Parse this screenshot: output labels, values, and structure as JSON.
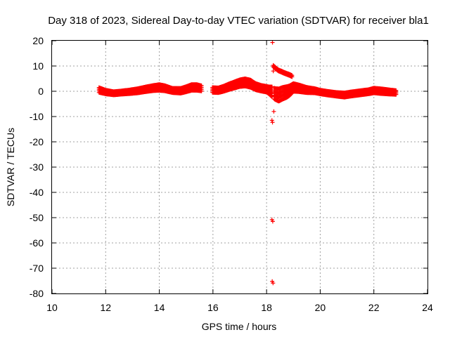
{
  "chart_data": {
    "type": "scatter",
    "title": "Day 318 of 2023, Sidereal Day-to-day VTEC variation (SDTVAR) for receiver bla1",
    "xlabel": "GPS time / hours",
    "ylabel": "SDTVAR / TECUs",
    "xlim": [
      10,
      24
    ],
    "ylim": [
      -80,
      20
    ],
    "xticks": [
      10,
      12,
      14,
      16,
      18,
      20,
      22,
      24
    ],
    "yticks": [
      20,
      10,
      0,
      -10,
      -20,
      -30,
      -40,
      -50,
      -60,
      -70,
      -80
    ],
    "xtick_labels": [
      "10",
      "12",
      "14",
      "16",
      "18",
      "20",
      "22",
      "24"
    ],
    "ytick_labels": [
      "20",
      "10",
      "0",
      "-10",
      "-20",
      "-30",
      "-40",
      "-50",
      "-60",
      "-70",
      "-80"
    ],
    "grid": true,
    "marker": "+",
    "series": [
      {
        "name": "SDTVAR",
        "color": "#ff0000",
        "main_band": {
          "x": [
            11.75,
            12.0,
            12.3,
            12.6,
            12.9,
            13.2,
            13.5,
            13.8,
            14.0,
            14.2,
            14.5,
            14.8,
            15.0,
            15.2,
            15.4,
            15.55,
            16.0,
            16.2,
            16.4,
            16.6,
            16.8,
            17.0,
            17.2,
            17.4,
            17.6,
            17.8,
            18.0,
            18.1,
            18.2,
            18.3,
            18.45,
            18.6,
            18.75,
            18.85,
            19.0,
            19.2,
            19.5,
            19.8,
            20.0,
            20.3,
            20.6,
            20.9,
            21.2,
            21.5,
            21.8,
            22.0,
            22.3,
            22.6,
            22.85
          ],
          "y": [
            0.5,
            -0.3,
            -0.8,
            -0.5,
            -0.2,
            0.2,
            0.8,
            1.3,
            1.5,
            1.2,
            0.3,
            0.2,
            0.8,
            1.5,
            1.5,
            1.2,
            0.5,
            0.4,
            1.0,
            1.8,
            2.5,
            3.2,
            3.5,
            3.0,
            1.8,
            1.2,
            0.8,
            0.3,
            -0.2,
            -1.0,
            -1.5,
            -0.8,
            -0.3,
            0.2,
            1.5,
            1.2,
            0.5,
            0.2,
            -0.3,
            -0.8,
            -1.2,
            -1.5,
            -1.0,
            -0.6,
            -0.2,
            0.3,
            0.0,
            -0.3,
            -0.5
          ],
          "spread": [
            1.0,
            0.8,
            0.7,
            0.7,
            0.8,
            0.9,
            1.0,
            1.1,
            1.2,
            1.1,
            0.9,
            1.0,
            1.1,
            1.2,
            1.2,
            1.1,
            1.0,
            1.0,
            1.1,
            1.2,
            1.3,
            1.4,
            1.5,
            1.5,
            1.3,
            1.2,
            1.2,
            1.5,
            2.0,
            2.2,
            2.5,
            2.4,
            2.2,
            2.0,
            1.6,
            1.4,
            1.1,
            0.9,
            0.8,
            0.8,
            0.8,
            0.9,
            0.9,
            0.9,
            0.9,
            1.0,
            1.0,
            0.9,
            0.8
          ]
        },
        "recovery_trace": {
          "x": [
            18.25,
            18.35,
            18.45,
            18.55,
            18.65,
            18.75,
            18.85,
            18.95
          ],
          "y": [
            10.0,
            9.0,
            8.2,
            7.8,
            7.3,
            6.9,
            6.5,
            6.0
          ]
        },
        "outliers": [
          {
            "x": 18.22,
            "y": 19.3
          },
          {
            "x": 18.25,
            "y": 8.0
          },
          {
            "x": 18.27,
            "y": -8.0
          },
          {
            "x": 18.2,
            "y": -11.5
          },
          {
            "x": 18.22,
            "y": -12.3
          },
          {
            "x": 18.2,
            "y": -50.8
          },
          {
            "x": 18.23,
            "y": -51.5
          },
          {
            "x": 18.21,
            "y": -75.2
          },
          {
            "x": 18.24,
            "y": -75.9
          }
        ]
      }
    ]
  }
}
